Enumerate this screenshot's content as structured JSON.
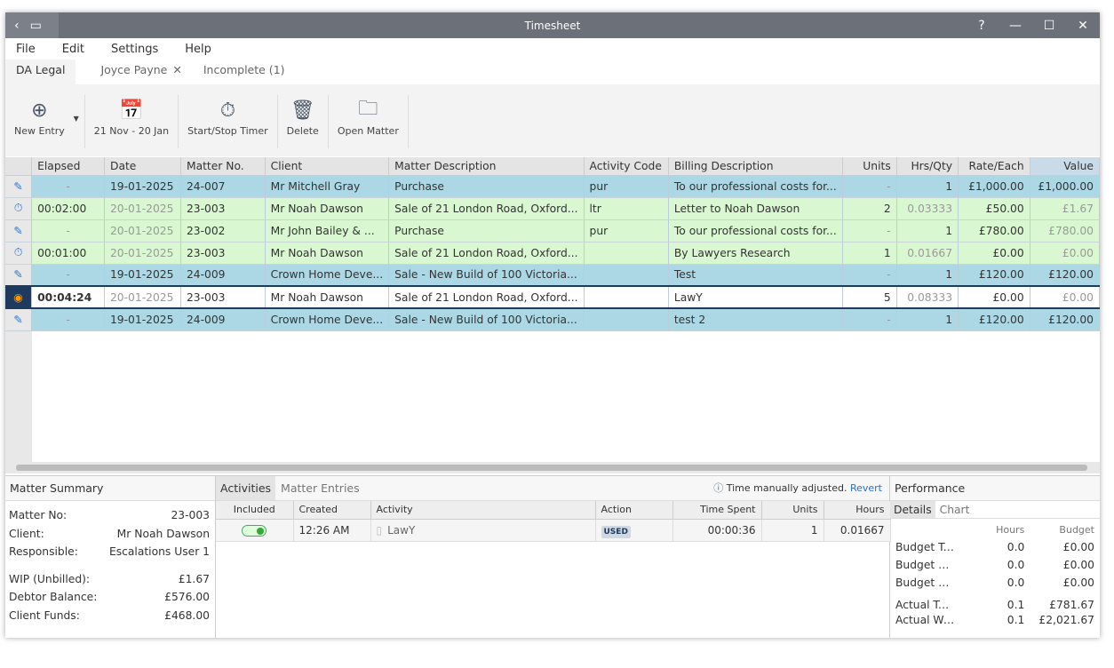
{
  "window": {
    "title": "Timesheet"
  },
  "menu": [
    "File",
    "Edit",
    "Settings",
    "Help"
  ],
  "tabs": [
    {
      "label": "DA Legal",
      "active": true
    },
    {
      "label": "Joyce Payne",
      "closable": true
    },
    {
      "label": "Incomplete (1)"
    }
  ],
  "toolbar": [
    {
      "label": "New Entry",
      "icon": "new-entry-icon"
    },
    {
      "label": "21 Nov - 20 Jan",
      "icon": "calendar-icon"
    },
    {
      "label": "Start/Stop Timer",
      "icon": "timer-icon"
    },
    {
      "label": "Delete",
      "icon": "trash-icon"
    },
    {
      "label": "Open Matter",
      "icon": "folder-matter-icon"
    }
  ],
  "grid": {
    "columns": [
      "",
      "Elapsed",
      "Date",
      "Matter No.",
      "Client",
      "Matter Description",
      "Activity Code",
      "Billing Description",
      "Units",
      "Hrs/Qty",
      "Rate/Each",
      "Value"
    ],
    "rows": [
      {
        "style": "blue",
        "icon": "edit-icon",
        "cells": [
          "-",
          "19-01-2025",
          "24-007",
          "Mr Mitchell Gray",
          "Purchase",
          "pur",
          "To our professional costs for...",
          "-",
          "1",
          "£1,000.00",
          "£1,000.00"
        ]
      },
      {
        "style": "green",
        "icon": "stopwatch-icon",
        "cells": [
          "00:02:00",
          "20-01-2025",
          "23-003",
          "Mr Noah Dawson",
          "Sale of 21 London Road, Oxford...",
          "ltr",
          "Letter to Noah Dawson",
          "2",
          "0.03333",
          "£50.00",
          "£1.67"
        ]
      },
      {
        "style": "green",
        "icon": "edit-icon",
        "cells": [
          "-",
          "20-01-2025",
          "23-002",
          "Mr John Bailey & ...",
          "Purchase",
          "pur",
          "To our professional costs for...",
          "-",
          "1",
          "£780.00",
          "£780.00"
        ]
      },
      {
        "style": "green",
        "icon": "stopwatch-icon",
        "cells": [
          "00:01:00",
          "20-01-2025",
          "23-003",
          "Mr Noah Dawson",
          "Sale of 21 London Road, Oxford...",
          "",
          "By Lawyers Research",
          "1",
          "0.01667",
          "£0.00",
          "£0.00"
        ]
      },
      {
        "style": "blue",
        "icon": "edit-icon",
        "cells": [
          "-",
          "19-01-2025",
          "24-009",
          "Crown Home Deve...",
          "Sale - New Build of 100 Victoria...",
          "",
          "Test",
          "-",
          "1",
          "£120.00",
          "£120.00"
        ]
      },
      {
        "style": "sel",
        "icon": "record-icon",
        "cells": [
          "00:04:24",
          "20-01-2025",
          "23-003",
          "Mr Noah Dawson",
          "Sale of 21 London Road, Oxford...",
          "",
          "LawY",
          "5",
          "0.08333",
          "£0.00",
          "£0.00"
        ]
      },
      {
        "style": "blue",
        "icon": "edit-icon",
        "cells": [
          "-",
          "19-01-2025",
          "24-009",
          "Crown Home Deve...",
          "Sale - New Build of 100 Victoria...",
          "",
          "test 2",
          "-",
          "1",
          "£120.00",
          "£120.00"
        ]
      }
    ]
  },
  "summary": {
    "title": "Matter Summary",
    "items": [
      [
        "Matter No:",
        "23-003"
      ],
      [
        "Client:",
        "Mr Noah Dawson"
      ],
      [
        "Responsible:",
        "Escalations User 1"
      ],
      [
        "WIP (Unbilled):",
        "£1.67"
      ],
      [
        "Debtor Balance:",
        "£576.00"
      ],
      [
        "Client Funds:",
        "£468.00"
      ]
    ]
  },
  "activities": {
    "tabs": [
      "Activities",
      "Matter Entries"
    ],
    "notice": "Time manually adjusted.",
    "revert": "Revert",
    "columns": [
      "Included",
      "Created",
      "Activity",
      "Action",
      "Time Spent",
      "Units",
      "Hours"
    ],
    "rows": [
      {
        "included": true,
        "cells": [
          "12:26 AM",
          "LawY",
          "USED",
          "00:00:36",
          "1",
          "0.01667"
        ]
      }
    ]
  },
  "performance": {
    "title": "Performance",
    "tabs": [
      "Details",
      "Chart"
    ],
    "headers": [
      "Hours",
      "Budget"
    ],
    "rows": [
      [
        "Budget Today:",
        "0.0",
        "£0.00"
      ],
      [
        "Budget WTD:",
        "0.0",
        "£0.00"
      ],
      [
        "Budget MTD:",
        "0.0",
        "£0.00"
      ],
      [
        "Actual Today:",
        "0.1",
        "£781.67"
      ],
      [
        "Actual Week:",
        "0.1",
        "£2,021.67"
      ]
    ]
  },
  "colors": {
    "blue_row": "#acd8e6",
    "green_row": "#d9f8d1",
    "selected_border": "#1e3a5f",
    "titlebar": "#6b7079"
  }
}
